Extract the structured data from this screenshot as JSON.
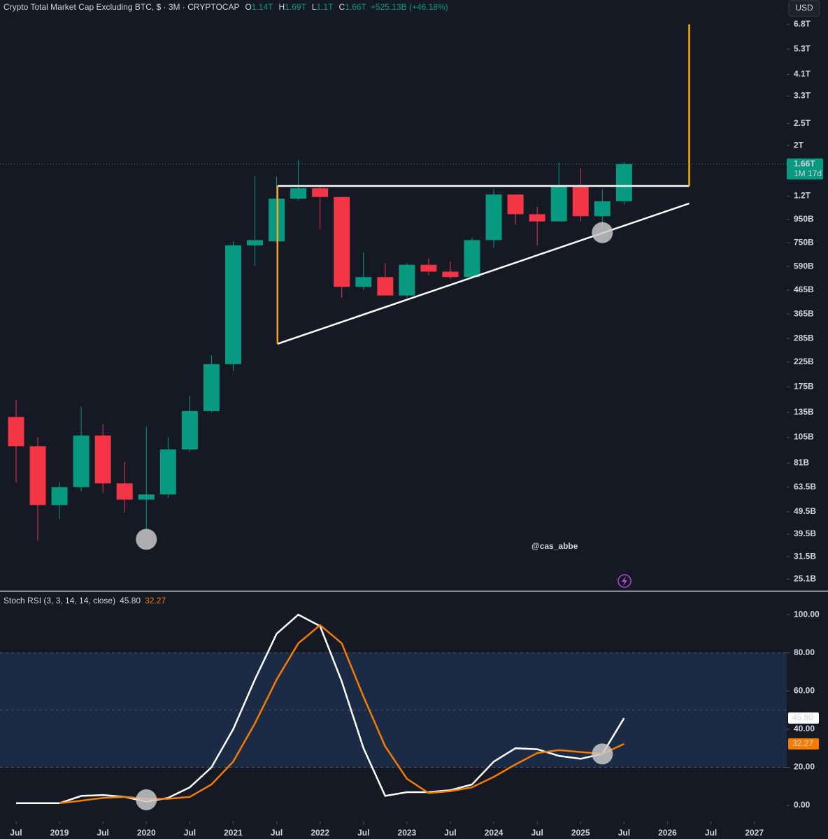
{
  "chart_data": [
    {
      "type": "candlestick",
      "title": "Crypto Total Market Cap Excluding BTC, $ · 3M · CRYPTOCAP",
      "ohlc_labels": [
        {
          "key": "O",
          "value": "1.14T"
        },
        {
          "key": "H",
          "value": "1.69T"
        },
        {
          "key": "L",
          "value": "1.1T"
        },
        {
          "key": "C",
          "value": "1.66T"
        }
      ],
      "change": "+525.13B (+46.18%)",
      "currency": "USD",
      "watermark": "@cas_abbe",
      "last_price_label": "1.66T",
      "countdown": "1M 17d",
      "x": [
        2018.5,
        2018.75,
        2019,
        2019.25,
        2019.5,
        2019.75,
        2020,
        2020.25,
        2020.5,
        2020.75,
        2021,
        2021.25,
        2021.5,
        2021.75,
        2022,
        2022.25,
        2022.5,
        2022.75,
        2023,
        2023.25,
        2023.5,
        2023.75,
        2024,
        2024.25,
        2024.5,
        2024.75,
        2025,
        2025.25,
        2025.5
      ],
      "open": [
        129,
        96,
        53,
        63.5,
        107,
        66,
        56,
        59,
        93,
        137,
        220,
        730,
        760,
        1170,
        1300,
        1190,
        480,
        530,
        440,
        600,
        560,
        530,
        770,
        1220,
        1000,
        930,
        1330,
        980,
        1140
      ],
      "high": [
        153,
        105,
        67,
        143,
        120,
        82,
        117,
        105,
        160,
        240,
        760,
        1470,
        1460,
        1730,
        1330,
        1190,
        680,
        610,
        610,
        640,
        620,
        790,
        1290,
        1220,
        1080,
        1680,
        1590,
        1290,
        1690
      ],
      "low": [
        66.6,
        37,
        46,
        61,
        60,
        49,
        41,
        57,
        91,
        135,
        205,
        595,
        750,
        1150,
        860,
        430,
        465,
        440,
        430,
        540,
        520,
        520,
        710,
        900,
        730,
        930,
        930,
        870,
        1100
      ],
      "close": [
        96,
        53,
        63.5,
        107,
        66,
        56,
        59,
        93,
        137,
        220,
        730,
        770,
        1170,
        1300,
        1190,
        480,
        530,
        440,
        600,
        560,
        530,
        770,
        1220,
        1000,
        930,
        1330,
        980,
        1140,
        1660
      ],
      "up_color": "#089981",
      "down_color": "#f23645",
      "log_scale": true,
      "xlim": [
        2018.315,
        2027.373
      ],
      "ylim": [
        22.3,
        8700
      ],
      "yticks": [
        {
          "value": 6800,
          "label": "6.8T"
        },
        {
          "value": 5300,
          "label": "5.3T"
        },
        {
          "value": 4100,
          "label": "4.1T"
        },
        {
          "value": 3300,
          "label": "3.3T"
        },
        {
          "value": 2500,
          "label": "2.5T"
        },
        {
          "value": 2000,
          "label": "2T"
        },
        {
          "value": 1200,
          "label": "1.2T"
        },
        {
          "value": 950,
          "label": "950B"
        },
        {
          "value": 750,
          "label": "750B"
        },
        {
          "value": 590,
          "label": "590B"
        },
        {
          "value": 465,
          "label": "465B"
        },
        {
          "value": 365,
          "label": "365B"
        },
        {
          "value": 285,
          "label": "285B"
        },
        {
          "value": 225,
          "label": "225B"
        },
        {
          "value": 175,
          "label": "175B"
        },
        {
          "value": 135,
          "label": "135B"
        },
        {
          "value": 105,
          "label": "105B"
        },
        {
          "value": 81,
          "label": "81B"
        },
        {
          "value": 63.5,
          "label": "63.5B"
        },
        {
          "value": 49.5,
          "label": "49.5B"
        },
        {
          "value": 39.5,
          "label": "39.5B"
        },
        {
          "value": 31.5,
          "label": "31.5B"
        },
        {
          "value": 25.1,
          "label": "25.1B"
        }
      ],
      "drawings": [
        {
          "color": "#ffffff",
          "x": [
            2021.51,
            2026.25
          ],
          "y": [
            1330,
            1330
          ]
        },
        {
          "color": "#ffffff",
          "x": [
            2021.51,
            2026.25
          ],
          "y": [
            270,
            1115
          ]
        },
        {
          "color": "#f5a623",
          "x": [
            2021.51,
            2021.51
          ],
          "y": [
            1330,
            270
          ]
        },
        {
          "color": "#f5a623",
          "x": [
            2026.25,
            2026.25
          ],
          "y": [
            1330,
            6800
          ]
        }
      ],
      "markers": {
        "color": "#c8c8c8",
        "x": [
          2020,
          2025.25
        ],
        "y": [
          37.5,
          830
        ]
      }
    },
    {
      "type": "line",
      "title": "Stoch RSI (3, 3, 14, 14, close)",
      "legend_values": [
        "45.80",
        "32.27"
      ],
      "x": [
        2018.5,
        2018.75,
        2019,
        2019.25,
        2019.5,
        2019.75,
        2020,
        2020.25,
        2020.5,
        2020.75,
        2021,
        2021.25,
        2021.5,
        2021.75,
        2022,
        2022.25,
        2022.5,
        2022.75,
        2023,
        2023.25,
        2023.5,
        2023.75,
        2024,
        2024.25,
        2024.5,
        2024.75,
        2025,
        2025.25,
        2025.5
      ],
      "series": [
        {
          "color": "#ffffff",
          "values": [
            1.2,
            1.2,
            1.2,
            5,
            5.5,
            4.5,
            2,
            4,
            9.5,
            20,
            40,
            66,
            90,
            100,
            94,
            65,
            30,
            5,
            7,
            7,
            8,
            11,
            23,
            30,
            29.5,
            26,
            24.5,
            27,
            45.8
          ]
        },
        {
          "color": "#f57c00",
          "values": [
            null,
            null,
            1.2,
            2.5,
            4,
            4.5,
            3.5,
            3.5,
            4.5,
            11,
            23,
            43,
            66,
            85,
            94.5,
            85,
            57,
            31,
            14,
            6.5,
            7.5,
            9.5,
            15,
            21.5,
            27.5,
            29,
            28,
            27,
            32.27
          ]
        }
      ],
      "band": [
        20,
        80
      ],
      "levels": [
        20,
        50,
        80
      ],
      "xlim": [
        2018.315,
        2027.373
      ],
      "ylim": [
        -8.4,
        112.5
      ],
      "yticks": [
        {
          "value": 100,
          "label": "100.00"
        },
        {
          "value": 80,
          "label": "80.00"
        },
        {
          "value": 60,
          "label": "60.00"
        },
        {
          "value": 40,
          "label": "40.00"
        },
        {
          "value": 20,
          "label": "20.00"
        },
        {
          "value": 0,
          "label": "0.00"
        }
      ],
      "xticks": [
        {
          "value": 2018.5,
          "label": "Jul"
        },
        2019,
        {
          "value": 2019.5,
          "label": "Jul"
        },
        2020,
        {
          "value": 2020.5,
          "label": "Jul"
        },
        2021,
        {
          "value": 2021.5,
          "label": "Jul"
        },
        2022,
        {
          "value": 2022.5,
          "label": "Jul"
        },
        2023,
        {
          "value": 2023.5,
          "label": "Jul"
        },
        2024,
        {
          "value": 2024.5,
          "label": "Jul"
        },
        2025,
        {
          "value": 2025.5,
          "label": "Jul"
        },
        2026,
        {
          "value": 2026.5,
          "label": "Jul"
        },
        2027
      ],
      "markers": {
        "color": "#c8c8c8",
        "x": [
          2020,
          2025.25
        ],
        "y": [
          3,
          27
        ]
      }
    }
  ]
}
